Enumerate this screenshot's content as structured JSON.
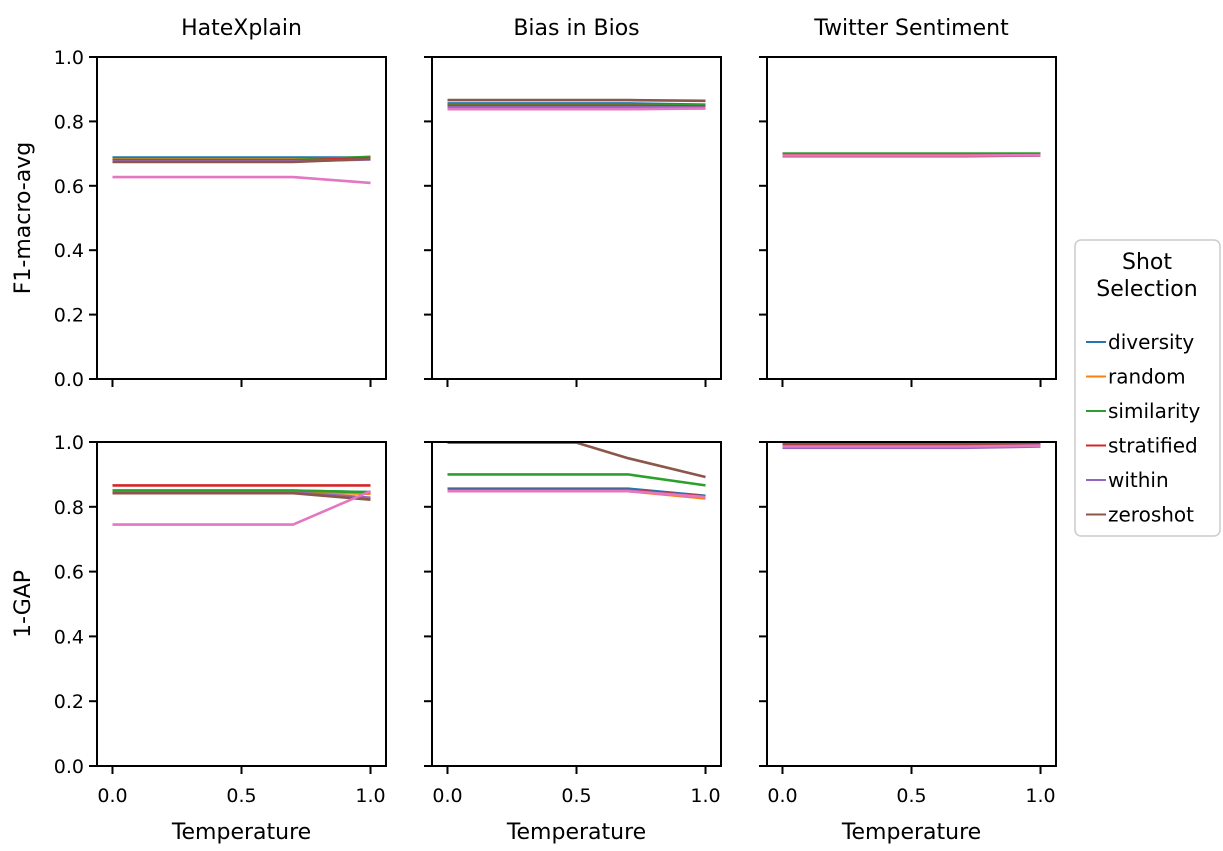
{
  "chart_data": {
    "type": "line",
    "x": [
      0.0,
      0.5,
      0.7,
      1.0
    ],
    "xticks": [
      "0.0",
      "0.5",
      "1.0"
    ],
    "xtick_values": [
      0.0,
      0.5,
      1.0
    ],
    "yticks": [
      "0.0",
      "0.2",
      "0.4",
      "0.6",
      "0.8",
      "1.0"
    ],
    "ytick_values": [
      0.0,
      0.2,
      0.4,
      0.6,
      0.8,
      1.0
    ],
    "xlim": [
      -0.06,
      1.06
    ],
    "ylim": [
      0.0,
      1.0
    ],
    "xlabel": "Temperature",
    "grid": false,
    "legend": {
      "title_line1": "Shot",
      "title_line2": "Selection",
      "placement": "center-right",
      "entries": [
        {
          "name": "diversity",
          "color": "#1f77b4"
        },
        {
          "name": "random",
          "color": "#ff7f0e"
        },
        {
          "name": "similarity",
          "color": "#2ca02c"
        },
        {
          "name": "stratified",
          "color": "#d62728"
        },
        {
          "name": "within",
          "color": "#9467bd"
        },
        {
          "name": "zeroshot",
          "color": "#8c564b"
        }
      ]
    },
    "extra_series_color": "#e377c2",
    "rows": [
      {
        "ylabel": "F1-macro-avg"
      },
      {
        "ylabel": "1-GAP"
      }
    ],
    "columns": [
      {
        "title": "HateXplain"
      },
      {
        "title": "Bias in Bios"
      },
      {
        "title": "Twitter Sentiment"
      }
    ],
    "panels": [
      [
        [
          {
            "color": "#1f77b4",
            "values": [
              0.688,
              0.688,
              0.688,
              0.688
            ]
          },
          {
            "color": "#ff7f0e",
            "values": [
              0.682,
              0.682,
              0.682,
              0.685
            ]
          },
          {
            "color": "#2ca02c",
            "values": [
              0.68,
              0.68,
              0.68,
              0.69
            ]
          },
          {
            "color": "#d62728",
            "values": [
              0.678,
              0.678,
              0.678,
              0.686
            ]
          },
          {
            "color": "#9467bd",
            "values": [
              0.676,
              0.676,
              0.676,
              0.682
            ]
          },
          {
            "color": "#8c564b",
            "values": [
              0.674,
              0.674,
              0.674,
              0.684
            ]
          },
          {
            "color": "#e377c2",
            "values": [
              0.627,
              0.627,
              0.627,
              0.609
            ]
          }
        ],
        [
          {
            "color": "#1f77b4",
            "values": [
              0.856,
              0.856,
              0.856,
              0.852
            ]
          },
          {
            "color": "#ff7f0e",
            "values": [
              0.84,
              0.84,
              0.84,
              0.84
            ]
          },
          {
            "color": "#2ca02c",
            "values": [
              0.852,
              0.852,
              0.852,
              0.85
            ]
          },
          {
            "color": "#d62728",
            "values": [
              0.848,
              0.848,
              0.848,
              0.846
            ]
          },
          {
            "color": "#9467bd",
            "values": [
              0.844,
              0.844,
              0.844,
              0.843
            ]
          },
          {
            "color": "#8c564b",
            "values": [
              0.866,
              0.866,
              0.866,
              0.864
            ]
          },
          {
            "color": "#e377c2",
            "values": [
              0.838,
              0.838,
              0.838,
              0.84
            ]
          }
        ],
        [
          {
            "color": "#1f77b4",
            "values": [
              0.697,
              0.697,
              0.697,
              0.697
            ]
          },
          {
            "color": "#ff7f0e",
            "values": [
              0.694,
              0.694,
              0.694,
              0.695
            ]
          },
          {
            "color": "#2ca02c",
            "values": [
              0.7,
              0.7,
              0.7,
              0.7
            ]
          },
          {
            "color": "#d62728",
            "values": [
              0.695,
              0.695,
              0.695,
              0.696
            ]
          },
          {
            "color": "#9467bd",
            "values": [
              0.693,
              0.693,
              0.693,
              0.694
            ]
          },
          {
            "color": "#8c564b",
            "values": [
              0.692,
              0.692,
              0.692,
              0.694
            ]
          },
          {
            "color": "#e377c2",
            "values": [
              0.694,
              0.694,
              0.694,
              0.695
            ]
          }
        ]
      ],
      [
        [
          {
            "color": "#1f77b4",
            "values": [
              0.85,
              0.85,
              0.85,
              0.845
            ]
          },
          {
            "color": "#ff7f0e",
            "values": [
              0.846,
              0.846,
              0.846,
              0.84
            ]
          },
          {
            "color": "#2ca02c",
            "values": [
              0.85,
              0.85,
              0.85,
              0.845
            ]
          },
          {
            "color": "#d62728",
            "values": [
              0.866,
              0.866,
              0.866,
              0.866
            ]
          },
          {
            "color": "#9467bd",
            "values": [
              0.844,
              0.844,
              0.844,
              0.828
            ]
          },
          {
            "color": "#8c564b",
            "values": [
              0.842,
              0.842,
              0.842,
              0.822
            ]
          },
          {
            "color": "#e377c2",
            "values": [
              0.745,
              0.745,
              0.745,
              0.848
            ]
          }
        ],
        [
          {
            "color": "#1f77b4",
            "values": [
              0.856,
              0.856,
              0.856,
              0.834
            ]
          },
          {
            "color": "#ff7f0e",
            "values": [
              0.848,
              0.848,
              0.848,
              0.826
            ]
          },
          {
            "color": "#2ca02c",
            "values": [
              0.9,
              0.9,
              0.9,
              0.866
            ]
          },
          {
            "color": "#d62728",
            "values": [
              0.852,
              0.852,
              0.852,
              0.832
            ]
          },
          {
            "color": "#9467bd",
            "values": [
              0.85,
              0.85,
              0.85,
              0.83
            ]
          },
          {
            "color": "#8c564b",
            "values": [
              0.998,
              0.998,
              0.95,
              0.892
            ]
          },
          {
            "color": "#e377c2",
            "values": [
              0.848,
              0.848,
              0.848,
              0.83
            ]
          }
        ],
        [
          {
            "color": "#1f77b4",
            "values": [
              0.988,
              0.988,
              0.988,
              0.99
            ]
          },
          {
            "color": "#ff7f0e",
            "values": [
              0.99,
              0.99,
              0.99,
              0.992
            ]
          },
          {
            "color": "#2ca02c",
            "values": [
              0.992,
              0.992,
              0.992,
              0.993
            ]
          },
          {
            "color": "#d62728",
            "values": [
              0.994,
              0.994,
              0.994,
              0.995
            ]
          },
          {
            "color": "#9467bd",
            "values": [
              0.982,
              0.982,
              0.982,
              0.986
            ]
          },
          {
            "color": "#8c564b",
            "values": [
              0.996,
              0.996,
              0.996,
              0.996
            ]
          },
          {
            "color": "#e377c2",
            "values": [
              0.986,
              0.986,
              0.986,
              0.989
            ]
          }
        ]
      ]
    ]
  }
}
